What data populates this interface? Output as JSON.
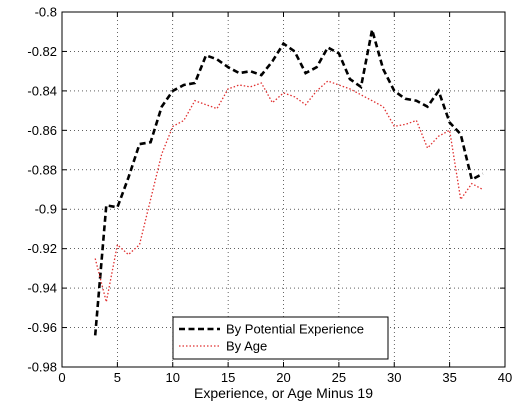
{
  "chart_data": {
    "type": "line",
    "title": "",
    "xlabel": "Experience, or Age Minus 19",
    "ylabel": "",
    "xlim": [
      0,
      40
    ],
    "ylim": [
      -0.98,
      -0.8
    ],
    "xticks": [
      0,
      5,
      10,
      15,
      20,
      25,
      30,
      35,
      40
    ],
    "yticks": [
      -0.98,
      -0.96,
      -0.94,
      -0.92,
      -0.9,
      -0.88,
      -0.86,
      -0.84,
      -0.82,
      -0.8
    ],
    "grid": true,
    "legend_position": "bottom-center",
    "series": [
      {
        "name": "By Potential Experience",
        "color": "#000000",
        "style": "dashed",
        "x": [
          3,
          4,
          5,
          6,
          7,
          8,
          9,
          10,
          11,
          12,
          13,
          14,
          15,
          16,
          17,
          18,
          19,
          20,
          21,
          22,
          23,
          24,
          25,
          26,
          27,
          28,
          29,
          30,
          31,
          32,
          33,
          34,
          35,
          36,
          37,
          38
        ],
        "y": [
          -0.964,
          -0.898,
          -0.899,
          -0.884,
          -0.867,
          -0.866,
          -0.848,
          -0.84,
          -0.837,
          -0.836,
          -0.822,
          -0.824,
          -0.828,
          -0.831,
          -0.83,
          -0.832,
          -0.825,
          -0.816,
          -0.82,
          -0.831,
          -0.828,
          -0.818,
          -0.821,
          -0.834,
          -0.838,
          -0.809,
          -0.829,
          -0.84,
          -0.844,
          -0.845,
          -0.848,
          -0.84,
          -0.856,
          -0.862,
          -0.885,
          -0.882
        ]
      },
      {
        "name": "By Age",
        "color": "#e03030",
        "style": "dotted",
        "x": [
          3,
          4,
          5,
          6,
          7,
          8,
          9,
          10,
          11,
          12,
          13,
          14,
          15,
          16,
          17,
          18,
          19,
          20,
          21,
          22,
          23,
          24,
          25,
          26,
          27,
          28,
          29,
          30,
          31,
          32,
          33,
          34,
          35,
          36,
          37,
          38
        ],
        "y": [
          -0.925,
          -0.947,
          -0.918,
          -0.923,
          -0.918,
          -0.895,
          -0.872,
          -0.858,
          -0.855,
          -0.845,
          -0.847,
          -0.849,
          -0.839,
          -0.837,
          -0.838,
          -0.836,
          -0.846,
          -0.841,
          -0.843,
          -0.847,
          -0.84,
          -0.835,
          -0.837,
          -0.839,
          -0.842,
          -0.845,
          -0.848,
          -0.858,
          -0.857,
          -0.855,
          -0.869,
          -0.863,
          -0.86,
          -0.895,
          -0.887,
          -0.89
        ]
      }
    ]
  }
}
